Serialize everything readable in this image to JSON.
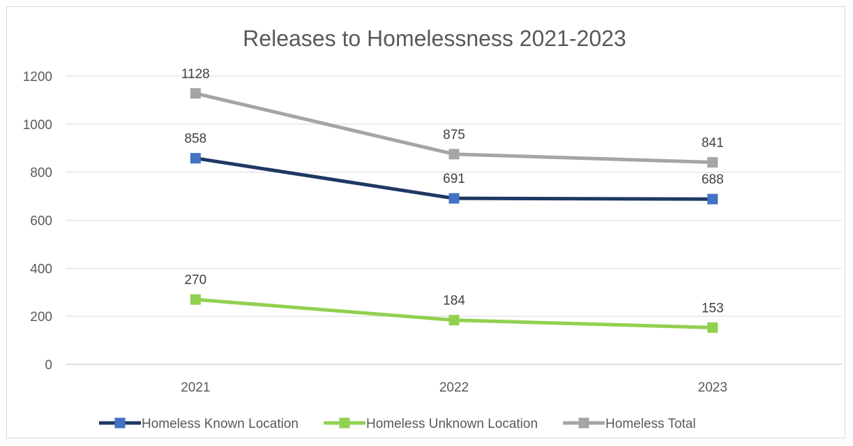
{
  "chart_data": {
    "type": "line",
    "title": "Releases to Homelessness 2021-2023",
    "categories": [
      "2021",
      "2022",
      "2023"
    ],
    "ylim": [
      0,
      1200
    ],
    "yticks": [
      0,
      200,
      400,
      600,
      800,
      1000,
      1200
    ],
    "grid": true,
    "legend_position": "bottom",
    "series": [
      {
        "name": "Homeless Known Location",
        "values": [
          858,
          691,
          688
        ],
        "line_color": "#1f3864",
        "marker_color": "#4472c4"
      },
      {
        "name": "Homeless Unknown Location",
        "values": [
          270,
          184,
          153
        ],
        "line_color": "#92d050",
        "marker_color": "#92d050"
      },
      {
        "name": "Homeless Total",
        "values": [
          1128,
          875,
          841
        ],
        "line_color": "#a5a5a5",
        "marker_color": "#a5a5a5"
      }
    ],
    "label_placement": "above"
  }
}
